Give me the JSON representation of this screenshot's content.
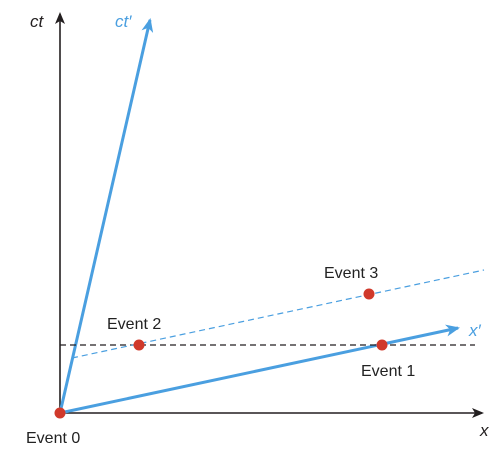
{
  "axes": {
    "x_label": "x",
    "ct_label": "ct",
    "x_prime_label": "x′",
    "ct_prime_label": "ct′"
  },
  "events": [
    {
      "label": "Event 0"
    },
    {
      "label": "Event 1"
    },
    {
      "label": "Event 2"
    },
    {
      "label": "Event 3"
    }
  ],
  "colors": {
    "axis": "#231f20",
    "primed_axis": "#4a9fe0",
    "event_point": "#d0392b",
    "dashed_black": "#231f20",
    "dashed_blue": "#4a9fe0",
    "label_text": "#222222"
  }
}
